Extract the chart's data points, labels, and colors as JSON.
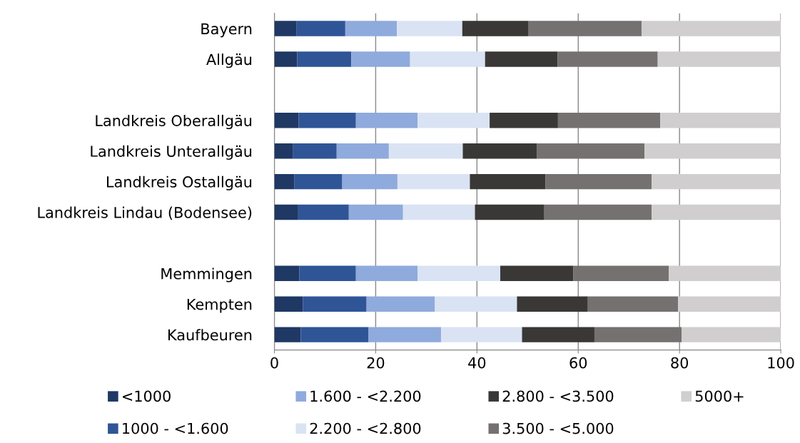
{
  "chart_data": {
    "type": "bar",
    "orientation": "horizontal",
    "stacked": true,
    "categories": [
      "Bayern",
      "Allgäu",
      null,
      "Landkreis Oberallgäu",
      "Landkreis Unterallgäu",
      "Landkreis Ostallgäu",
      "Landkreis Lindau (Bodensee)",
      null,
      "Memmingen",
      "Kempten",
      "Kaufbeuren"
    ],
    "series": [
      {
        "name": "<1000",
        "color": "#1f3864",
        "values": [
          4.4,
          4.5,
          null,
          4.8,
          3.7,
          3.9,
          4.7,
          null,
          4.9,
          5.6,
          5.2
        ]
      },
      {
        "name": "1000 - <1.600",
        "color": "#2f5597",
        "values": [
          9.6,
          10.7,
          null,
          11.3,
          8.6,
          9.5,
          10.0,
          null,
          11.2,
          12.6,
          13.4
        ]
      },
      {
        "name": "1.600 - <2.200",
        "color": "#8faadc",
        "values": [
          10.2,
          11.6,
          null,
          12.2,
          10.3,
          10.9,
          10.7,
          null,
          12.2,
          13.5,
          14.3
        ]
      },
      {
        "name": "2.200 - <2.800",
        "color": "#dae3f3",
        "values": [
          12.9,
          14.8,
          null,
          14.2,
          14.6,
          14.3,
          14.2,
          null,
          16.3,
          16.2,
          16.0
        ]
      },
      {
        "name": "2.800 - <3.500",
        "color": "#3a3836",
        "values": [
          13.1,
          14.3,
          null,
          13.5,
          14.6,
          14.9,
          13.7,
          null,
          14.4,
          14.0,
          14.3
        ]
      },
      {
        "name": "3.500 - <5.000",
        "color": "#767171",
        "values": [
          22.3,
          19.8,
          null,
          20.2,
          21.3,
          21.0,
          21.2,
          null,
          18.9,
          17.8,
          17.2
        ]
      },
      {
        "name": "5000+",
        "color": "#d0cece",
        "values": [
          27.5,
          24.3,
          null,
          23.8,
          26.9,
          25.5,
          25.5,
          null,
          22.1,
          20.3,
          19.6
        ]
      }
    ],
    "xlim": [
      0,
      100
    ],
    "xticks": [
      0,
      20,
      40,
      60,
      80,
      100
    ],
    "grid": "x",
    "legend": "bottom"
  }
}
